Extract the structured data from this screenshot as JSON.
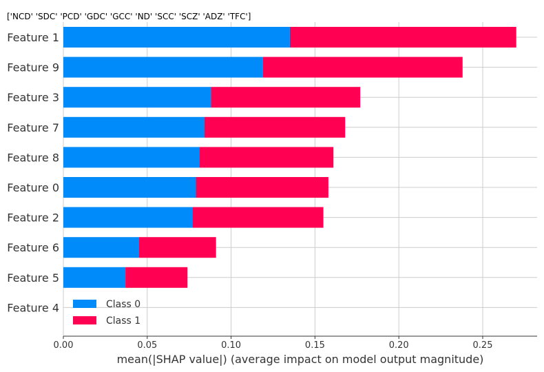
{
  "chart_data": {
    "type": "bar",
    "orientation": "horizontal",
    "stacked": true,
    "title": "['NCD' 'SDC' 'PCD' 'GDC' 'GCC' 'ND' 'SCC' 'SCZ' 'ADZ' 'TFC']",
    "xlabel": "mean(|SHAP value|) (average impact on model output magnitude)",
    "ylabel": "",
    "xlim": [
      0,
      0.28
    ],
    "x_ticks": [
      0.0,
      0.05,
      0.1,
      0.15,
      0.2,
      0.25
    ],
    "x_tick_labels": [
      "0.00",
      "0.05",
      "0.10",
      "0.15",
      "0.20",
      "0.25"
    ],
    "grid": "horizontal+vertical",
    "legend_position": "lower-left",
    "categories": [
      "Feature 1",
      "Feature 9",
      "Feature 3",
      "Feature 7",
      "Feature 8",
      "Feature 0",
      "Feature 2",
      "Feature 6",
      "Feature 5",
      "Feature 4"
    ],
    "series": [
      {
        "name": "Class 0",
        "color": "#008bfb",
        "values": [
          0.135,
          0.119,
          0.088,
          0.084,
          0.081,
          0.079,
          0.077,
          0.045,
          0.037,
          0.0
        ]
      },
      {
        "name": "Class 1",
        "color": "#ff0052",
        "values": [
          0.135,
          0.119,
          0.089,
          0.084,
          0.08,
          0.079,
          0.078,
          0.046,
          0.037,
          0.0
        ]
      }
    ]
  }
}
